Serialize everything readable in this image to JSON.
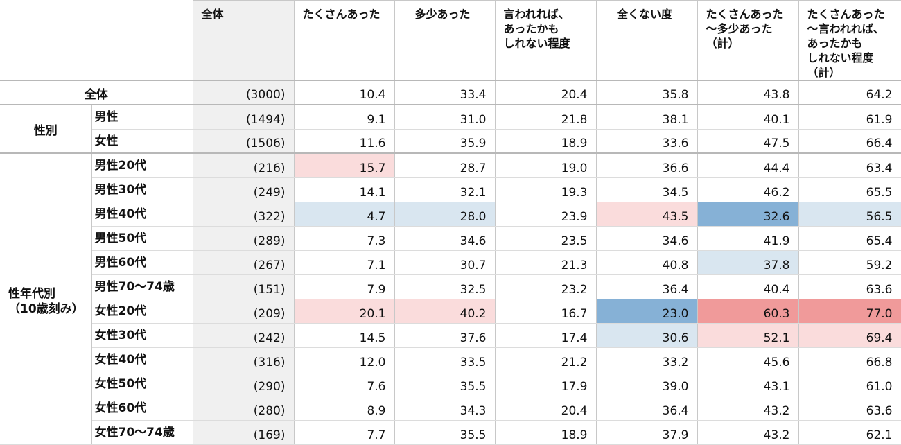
{
  "headers": {
    "n": "全体",
    "c1": "たくさんあった",
    "c2": "多少あった",
    "c3": "言われれば、\nあったかも\nしれない程度",
    "c4": "全くない度",
    "c5": "たくさんあった\n～多少あった（計）",
    "c6": "たくさんあった\n～言われれば、\nあったかも\nしれない程度（計）"
  },
  "total": {
    "label": "全体",
    "n": "(3000)",
    "v": [
      "10.4",
      "33.4",
      "20.4",
      "35.8",
      "43.8",
      "64.2"
    ]
  },
  "gender": {
    "label": "性別",
    "rows": [
      {
        "label": "男性",
        "n": "(1494)",
        "v": [
          "9.1",
          "31.0",
          "21.8",
          "38.1",
          "40.1",
          "61.9"
        ]
      },
      {
        "label": "女性",
        "n": "(1506)",
        "v": [
          "11.6",
          "35.9",
          "18.9",
          "33.6",
          "47.5",
          "66.4"
        ]
      }
    ]
  },
  "age": {
    "label": "性年代別\n（10歳刻み）",
    "rows": [
      {
        "label": "男性20代",
        "n": "(216)",
        "v": [
          "15.7",
          "28.7",
          "19.0",
          "36.6",
          "44.4",
          "63.4"
        ]
      },
      {
        "label": "男性30代",
        "n": "(249)",
        "v": [
          "14.1",
          "32.1",
          "19.3",
          "34.5",
          "46.2",
          "65.5"
        ]
      },
      {
        "label": "男性40代",
        "n": "(322)",
        "v": [
          "4.7",
          "28.0",
          "23.9",
          "43.5",
          "32.6",
          "56.5"
        ]
      },
      {
        "label": "男性50代",
        "n": "(289)",
        "v": [
          "7.3",
          "34.6",
          "23.5",
          "34.6",
          "41.9",
          "65.4"
        ]
      },
      {
        "label": "男性60代",
        "n": "(267)",
        "v": [
          "7.1",
          "30.7",
          "21.3",
          "40.8",
          "37.8",
          "59.2"
        ]
      },
      {
        "label": "男性70～74歳",
        "n": "(151)",
        "v": [
          "7.9",
          "32.5",
          "23.2",
          "36.4",
          "40.4",
          "63.6"
        ]
      },
      {
        "label": "女性20代",
        "n": "(209)",
        "v": [
          "20.1",
          "40.2",
          "16.7",
          "23.0",
          "60.3",
          "77.0"
        ]
      },
      {
        "label": "女性30代",
        "n": "(242)",
        "v": [
          "14.5",
          "37.6",
          "17.4",
          "30.6",
          "52.1",
          "69.4"
        ]
      },
      {
        "label": "女性40代",
        "n": "(316)",
        "v": [
          "12.0",
          "33.5",
          "21.2",
          "33.2",
          "45.6",
          "66.8"
        ]
      },
      {
        "label": "女性50代",
        "n": "(290)",
        "v": [
          "7.6",
          "35.5",
          "17.9",
          "39.0",
          "43.1",
          "61.0"
        ]
      },
      {
        "label": "女性60代",
        "n": "(280)",
        "v": [
          "8.9",
          "34.3",
          "20.4",
          "36.4",
          "43.2",
          "63.6"
        ]
      },
      {
        "label": "女性70～74歳",
        "n": "(169)",
        "v": [
          "7.7",
          "35.5",
          "18.9",
          "37.9",
          "43.2",
          "62.1"
        ]
      }
    ]
  },
  "highlight_colors": {
    "pink_light": "#fadcdc",
    "pink_strong": "#f09a9a",
    "blue_light": "#d9e6f0",
    "blue_strong": "#86b1d6"
  }
}
